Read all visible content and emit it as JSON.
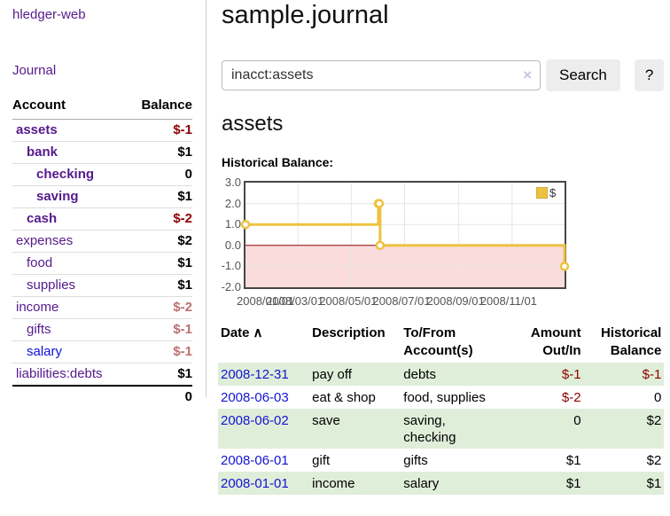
{
  "brand": "hledger-web",
  "nav": {
    "journal": "Journal"
  },
  "sidebar": {
    "account_header": "Account",
    "balance_header": "Balance",
    "rows": [
      {
        "account": "assets",
        "balance": "$-1"
      },
      {
        "account": "bank",
        "balance": "$1"
      },
      {
        "account": "checking",
        "balance": "0"
      },
      {
        "account": "saving",
        "balance": "$1"
      },
      {
        "account": "cash",
        "balance": "$-2"
      },
      {
        "account": "expenses",
        "balance": "$2"
      },
      {
        "account": "food",
        "balance": "$1"
      },
      {
        "account": "supplies",
        "balance": "$1"
      },
      {
        "account": "income",
        "balance": "$-2"
      },
      {
        "account": "gifts",
        "balance": "$-1"
      },
      {
        "account": "salary",
        "balance": "$-1"
      },
      {
        "account": "liabilities:debts",
        "balance": "$1"
      }
    ],
    "total": "0"
  },
  "page": {
    "title": "sample.journal",
    "account_title": "assets",
    "chart_label": "Historical Balance:"
  },
  "search": {
    "value": "inacct:assets",
    "clear_icon": "×",
    "search_button": "Search",
    "help_button": "?"
  },
  "chart_data": {
    "type": "line",
    "title": "Historical Balance:",
    "series": [
      {
        "name": "$",
        "color": "#edc240",
        "steps": true,
        "points": [
          [
            "2008/01/01",
            1
          ],
          [
            "2008/06/01",
            2
          ],
          [
            "2008/06/02",
            2
          ],
          [
            "2008/06/03",
            0
          ],
          [
            "2008/12/31",
            -1
          ]
        ]
      }
    ],
    "xlim": [
      "2008/01/01",
      "2008/12/31"
    ],
    "ylim": [
      -2,
      3
    ],
    "yticks": [
      3,
      2,
      1,
      0,
      -1,
      -2
    ],
    "xticks": [
      "2008/01/01",
      "2008/03/01",
      "2008/05/01",
      "2008/07/01",
      "2008/09/01",
      "2008/11/01"
    ],
    "legend_position": "ne",
    "grid": true,
    "negative_fill": "#fbdcdc",
    "zero_line_color": "#8b0000",
    "grid_color": "#e6e6e6",
    "axis_text_color": "#545454"
  },
  "register": {
    "headers": {
      "date": "Date",
      "sort_icon": "∧",
      "description": "Description",
      "account": "To/From Account(s)",
      "amount": "Amount Out/In",
      "balance": "Historical Balance"
    },
    "rows": [
      {
        "date": "2008-12-31",
        "description": "pay off",
        "accounts": "debts",
        "amount": "$-1",
        "balance": "$-1"
      },
      {
        "date": "2008-06-03",
        "description": "eat & shop",
        "accounts": "food, supplies",
        "amount": "$-2",
        "balance": "0"
      },
      {
        "date": "2008-06-02",
        "description": "save",
        "accounts": "saving, checking",
        "amount": "0",
        "balance": "$2"
      },
      {
        "date": "2008-06-01",
        "description": "gift",
        "accounts": "gifts",
        "amount": "$1",
        "balance": "$2"
      },
      {
        "date": "2008-01-01",
        "description": "income",
        "accounts": "salary",
        "amount": "$1",
        "balance": "$1"
      }
    ]
  },
  "colors": {
    "link_purple": "#551a8b",
    "link_blue": "#0f0fd9",
    "negative": "#8b0000",
    "negative_soft": "#bd6f6f",
    "row_stripe_green": "#dfeed9"
  }
}
